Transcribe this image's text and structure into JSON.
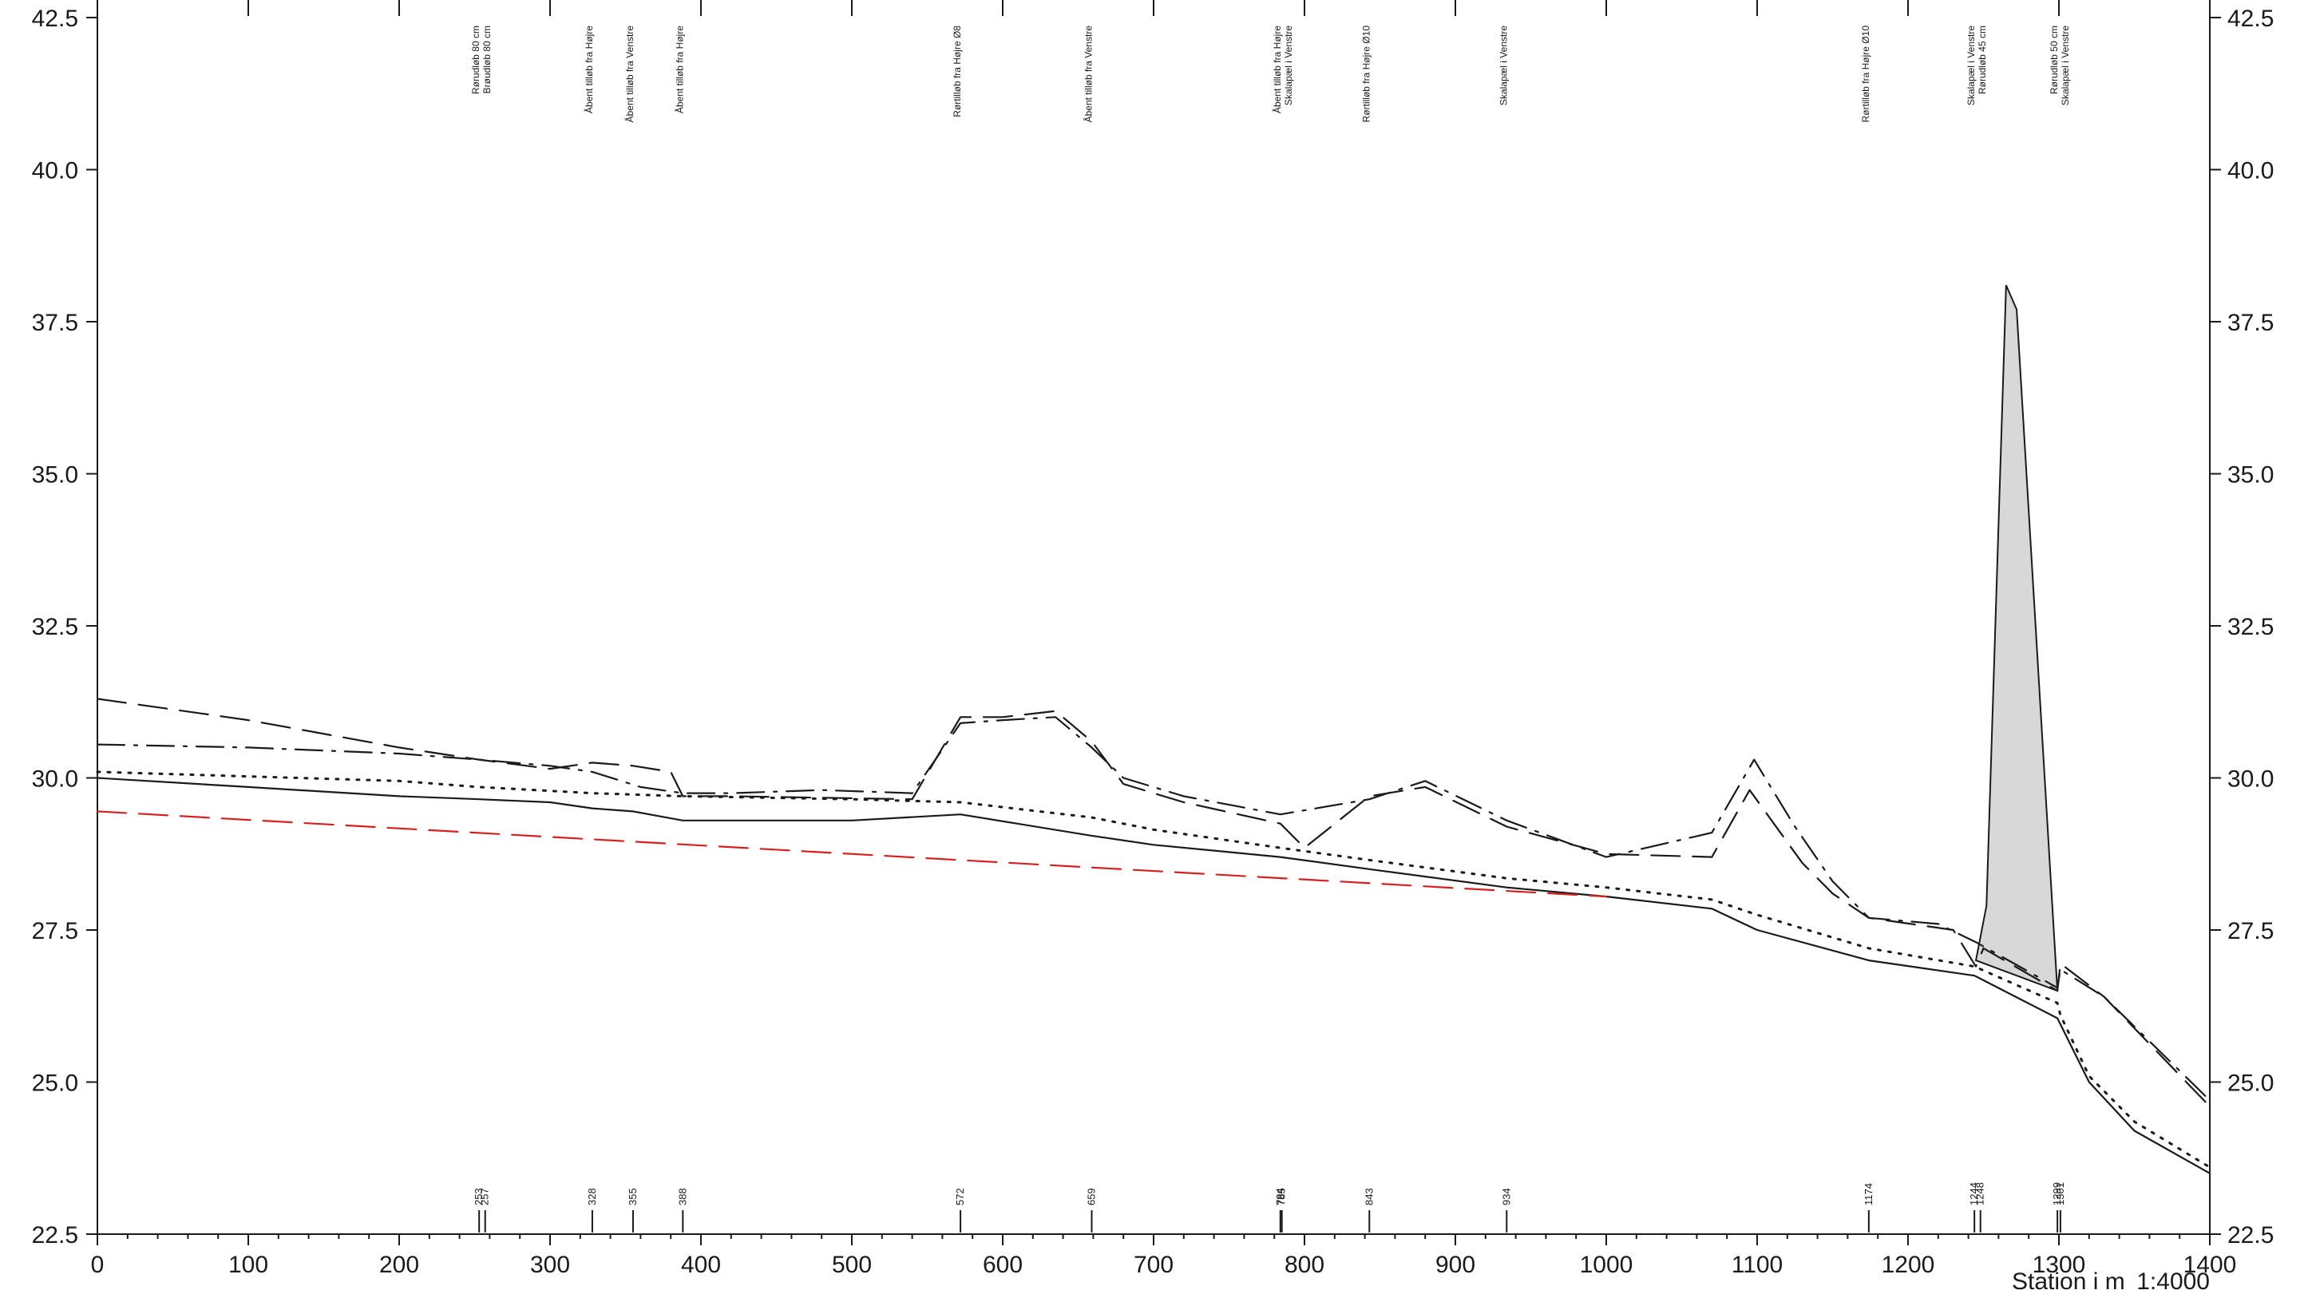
{
  "chart_data": {
    "type": "line",
    "title": "",
    "xlabel": "Station i m",
    "scale_label": "1:4000",
    "ylabel": "",
    "xlim": [
      0,
      1400
    ],
    "ylim": [
      22.5,
      42.5
    ],
    "x_ticks": [
      0,
      100,
      200,
      300,
      400,
      500,
      600,
      700,
      800,
      900,
      1000,
      1100,
      1200,
      1300,
      1400
    ],
    "y_ticks": [
      "22.5",
      "25.0",
      "27.5",
      "30.0",
      "32.5",
      "35.0",
      "37.5",
      "40.0",
      "42.5"
    ],
    "grid": false,
    "series": [
      {
        "style": "solid",
        "color": "#1a1a1a",
        "x": [
          0,
          100,
          200,
          253,
          300,
          328,
          355,
          388,
          500,
          572,
          659,
          700,
          784,
          843,
          934,
          1000,
          1070,
          1100,
          1174,
          1244,
          1248,
          1299,
          1301,
          1320,
          1350,
          1400
        ],
        "y": [
          30.0,
          29.85,
          29.7,
          29.65,
          29.6,
          29.5,
          29.45,
          29.3,
          29.3,
          29.4,
          29.05,
          28.9,
          28.7,
          28.5,
          28.2,
          28.05,
          27.85,
          27.5,
          27.0,
          26.75,
          26.7,
          26.05,
          25.95,
          25.0,
          24.2,
          23.5
        ]
      },
      {
        "style": "dotted",
        "color": "#1a1a1a",
        "x": [
          0,
          200,
          253,
          328,
          388,
          500,
          572,
          659,
          700,
          784,
          843,
          934,
          1000,
          1070,
          1100,
          1174,
          1244,
          1299,
          1301,
          1320,
          1350,
          1400
        ],
        "y": [
          30.1,
          29.95,
          29.85,
          29.75,
          29.7,
          29.65,
          29.6,
          29.35,
          29.15,
          28.85,
          28.65,
          28.35,
          28.2,
          28.0,
          27.75,
          27.2,
          26.9,
          26.3,
          26.1,
          25.1,
          24.35,
          23.6
        ]
      },
      {
        "style": "dashed",
        "color": "#1a1a1a",
        "x": [
          0,
          100,
          200,
          253,
          300,
          328,
          355,
          380,
          388,
          420,
          540,
          572,
          600,
          635,
          659,
          680,
          720,
          784,
          800,
          843,
          880,
          934,
          1000,
          1070,
          1095,
          1130,
          1150,
          1174,
          1230,
          1245,
          1250,
          1299,
          1301,
          1330,
          1400
        ],
        "y": [
          31.3,
          30.95,
          30.5,
          30.3,
          30.15,
          30.25,
          30.2,
          30.1,
          29.7,
          29.7,
          29.65,
          31.0,
          31.0,
          31.1,
          30.6,
          29.9,
          29.6,
          29.25,
          28.85,
          29.7,
          29.85,
          29.2,
          28.75,
          28.7,
          29.8,
          28.6,
          28.1,
          27.7,
          27.5,
          26.9,
          27.2,
          26.5,
          26.95,
          26.4,
          24.6
        ]
      },
      {
        "style": "dash-dot",
        "color": "#1a1a1a",
        "x": [
          0,
          100,
          200,
          253,
          300,
          328,
          360,
          388,
          420,
          480,
          540,
          572,
          600,
          635,
          659,
          680,
          720,
          784,
          843,
          880,
          934,
          1000,
          1070,
          1098,
          1125,
          1150,
          1174,
          1220,
          1245,
          1299,
          1301,
          1330,
          1400
        ],
        "y": [
          30.55,
          30.5,
          30.4,
          30.3,
          30.2,
          30.1,
          29.85,
          29.75,
          29.75,
          29.8,
          29.75,
          30.9,
          30.95,
          31.0,
          30.5,
          30.0,
          29.7,
          29.4,
          29.65,
          29.95,
          29.3,
          28.7,
          29.1,
          30.3,
          29.2,
          28.3,
          27.7,
          27.6,
          27.3,
          26.55,
          26.85,
          26.4,
          24.7
        ]
      },
      {
        "style": "dashed",
        "color": "#d62020",
        "x": [
          0,
          1000
        ],
        "y": [
          29.45,
          28.05
        ]
      }
    ],
    "structure_polygon": {
      "color": "#d8d8d8",
      "x": [
        1245,
        1252,
        1265,
        1272,
        1299,
        1299
      ],
      "y": [
        27.0,
        27.9,
        38.1,
        37.7,
        26.5,
        26.5
      ]
    },
    "station_markers": [
      {
        "x": 253,
        "label": "253"
      },
      {
        "x": 257,
        "label": "257"
      },
      {
        "x": 328,
        "label": "328"
      },
      {
        "x": 355,
        "label": "355"
      },
      {
        "x": 388,
        "label": "388"
      },
      {
        "x": 572,
        "label": "572"
      },
      {
        "x": 659,
        "label": "659"
      },
      {
        "x": 784,
        "label": "784"
      },
      {
        "x": 785,
        "label": "785"
      },
      {
        "x": 843,
        "label": "843"
      },
      {
        "x": 934,
        "label": "934"
      },
      {
        "x": 1174,
        "label": "1174"
      },
      {
        "x": 1244,
        "label": "1244"
      },
      {
        "x": 1248,
        "label": "1248"
      },
      {
        "x": 1299,
        "label": "1299"
      },
      {
        "x": 1301,
        "label": "1301"
      }
    ],
    "annotations": [
      {
        "x": 253,
        "lines": [
          "Rørudløb 80 cm",
          "Brøudløb 80 cm"
        ]
      },
      {
        "x": 328,
        "lines": [
          "Åbent tilløb fra Højre"
        ]
      },
      {
        "x": 355,
        "lines": [
          "Åbent tilløb fra Venstre"
        ]
      },
      {
        "x": 388,
        "lines": [
          "Åbent tilløb fra Højre"
        ]
      },
      {
        "x": 572,
        "lines": [
          "Rørtilløb fra Højre Ø8"
        ]
      },
      {
        "x": 659,
        "lines": [
          "Åbent tilløb fra Venstre"
        ]
      },
      {
        "x": 784,
        "lines": [
          "Åbent tilløb fra Højre",
          "Skalapæl i Venstre"
        ]
      },
      {
        "x": 843,
        "lines": [
          "Rørtilløb fra Højre Ø10"
        ]
      },
      {
        "x": 934,
        "lines": [
          "Skalapæl i Venstre"
        ]
      },
      {
        "x": 1174,
        "lines": [
          "Rørtilløb fra Højre Ø10"
        ]
      },
      {
        "x": 1244,
        "lines": [
          "Skalapæl i Venstre",
          "Rørudløb 45 cm"
        ]
      },
      {
        "x": 1299,
        "lines": [
          "Rørudløb 50 cm",
          "Skalapæl i Venstre"
        ]
      }
    ]
  }
}
